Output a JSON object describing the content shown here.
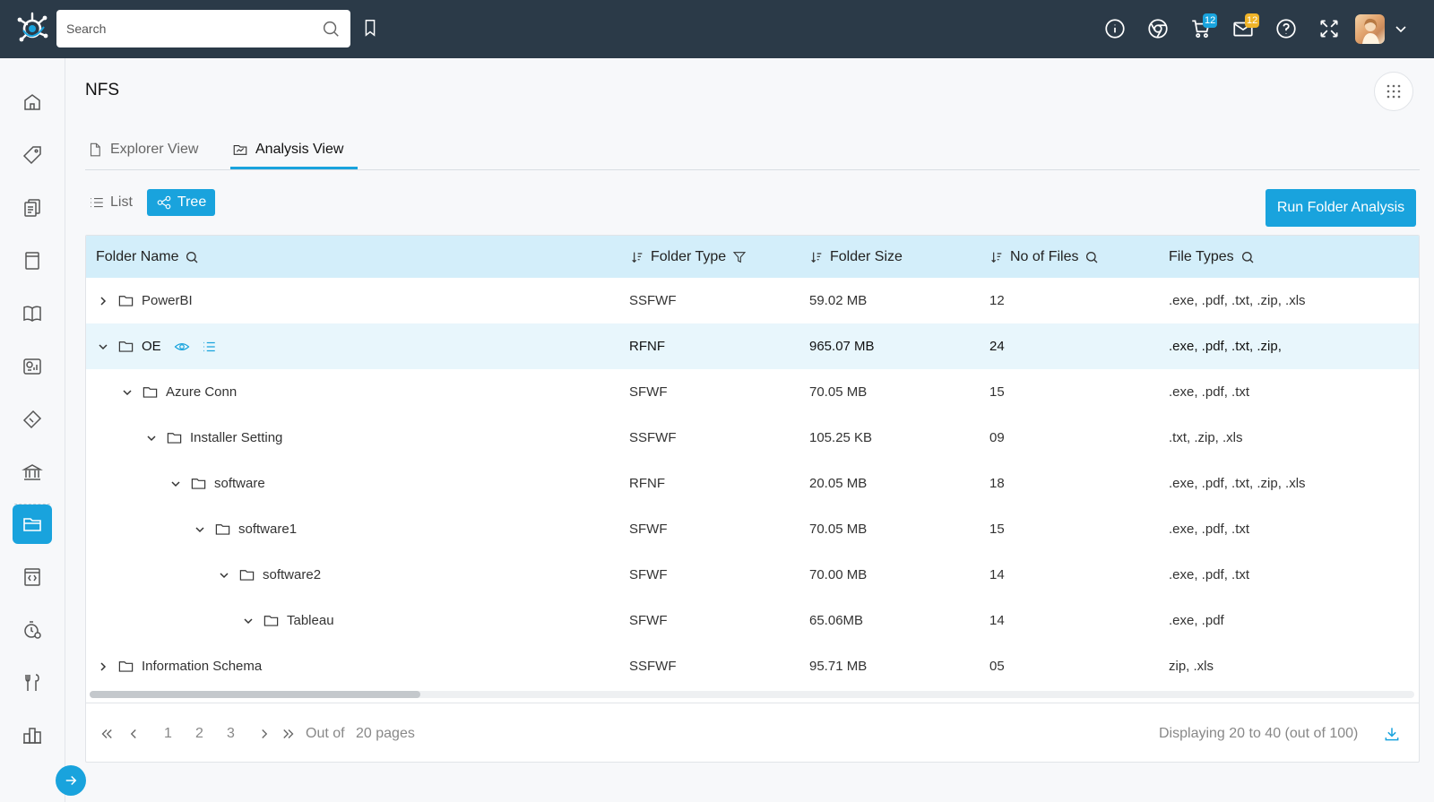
{
  "header": {
    "search_placeholder": "Search",
    "cart_badge": "12",
    "mail_badge": "12",
    "icons": [
      "info-icon",
      "chrome-icon",
      "cart-icon",
      "mail-icon",
      "help-icon",
      "fullscreen-icon"
    ]
  },
  "sidebar": {
    "items": [
      "home",
      "tag",
      "documents",
      "book",
      "book-open",
      "analytics",
      "ticket",
      "bank",
      "folder",
      "code-file",
      "timer",
      "tools",
      "organization"
    ],
    "active": "folder"
  },
  "page": {
    "title": "NFS",
    "tabs": [
      {
        "label": "Explorer View",
        "active": false
      },
      {
        "label": "Analysis View",
        "active": true
      }
    ],
    "view_toggle": {
      "list": "List",
      "tree": "Tree",
      "active": "tree"
    },
    "run_button": "Run Folder Analysis"
  },
  "table": {
    "columns": [
      "Folder Name",
      "Folder Type",
      "Folder Size",
      "No of Files",
      "File Types"
    ],
    "rows": [
      {
        "name": "PowerBI",
        "type": "SSFWF",
        "size": "59.02 MB",
        "files": "12",
        "filetypes": ".exe, .pdf, .txt, .zip, .xls",
        "level": 0,
        "expanded": false
      },
      {
        "name": "OE",
        "type": "RFNF",
        "size": "965.07 MB",
        "files": "24",
        "filetypes": ".exe, .pdf, .txt, .zip,",
        "level": 0,
        "expanded": true,
        "highlight": true
      },
      {
        "name": "Azure Conn",
        "type": "SFWF",
        "size": "70.05 MB",
        "files": "15",
        "filetypes": ".exe, .pdf, .txt",
        "level": 1,
        "expanded": true
      },
      {
        "name": "Installer Setting",
        "type": "SSFWF",
        "size": "105.25 KB",
        "files": "09",
        "filetypes": ".txt, .zip, .xls",
        "level": 2,
        "expanded": true
      },
      {
        "name": "software",
        "type": "RFNF",
        "size": "20.05 MB",
        "files": "18",
        "filetypes": ".exe, .pdf, .txt, .zip, .xls",
        "level": 3,
        "expanded": true
      },
      {
        "name": "software1",
        "type": "SFWF",
        "size": "70.05 MB",
        "files": "15",
        "filetypes": ".exe, .pdf, .txt",
        "level": 4,
        "expanded": true
      },
      {
        "name": "software2",
        "type": "SFWF",
        "size": "70.00 MB",
        "files": "14",
        "filetypes": ".exe, .pdf, .txt",
        "level": 5,
        "expanded": true
      },
      {
        "name": "Tableau",
        "type": "SFWF",
        "size": "65.06MB",
        "files": "14",
        "filetypes": ".exe, .pdf",
        "level": 6,
        "expanded": true
      },
      {
        "name": "Information Schema",
        "type": "SSFWF",
        "size": "95.71 MB",
        "files": "05",
        "filetypes": "zip, .xls",
        "level": 0,
        "expanded": false
      }
    ]
  },
  "pagination": {
    "pages": [
      "1",
      "2",
      "3"
    ],
    "out_of_label": "Out of",
    "total_pages_label": "20 pages",
    "display_text": "Displaying 20 to 40 (out of 100)"
  },
  "colors": {
    "topbar": "#2b3a48",
    "accent": "#19a3dd",
    "header_row": "#d3eefa",
    "highlight_row": "#e8f6fc",
    "cart_badge": "#19a3dd",
    "mail_badge": "#f0b429"
  }
}
